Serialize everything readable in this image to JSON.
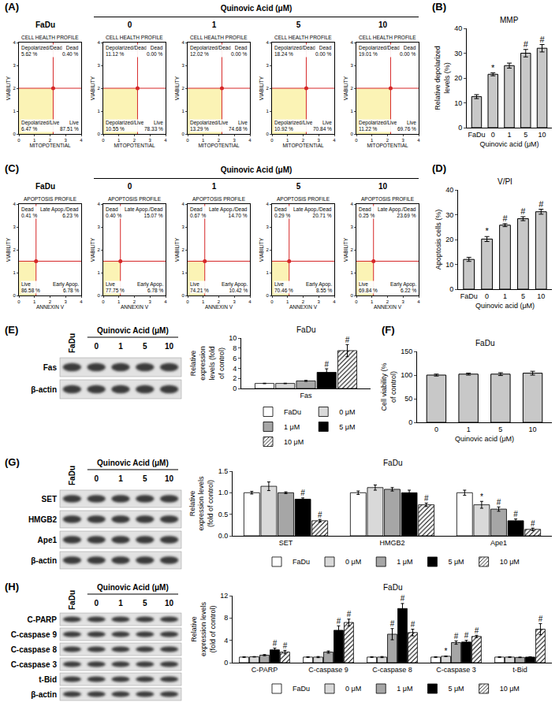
{
  "chart_data": [
    {
      "panel": "(A)",
      "type": "quadrant",
      "title": "CELL HEALTH PROFILE",
      "group_label": "Quinovic Acid (μM)",
      "x_label": "MITOPOTENTIAL",
      "y_label": "VIABILITY",
      "xlim": [
        0,
        4
      ],
      "ylim": [
        0,
        4
      ],
      "xticks": [
        0,
        1,
        2,
        3,
        4
      ],
      "yticks": [
        0,
        1,
        2,
        3,
        4
      ],
      "gate": {
        "x": 2.2,
        "y": 2.0
      },
      "quadrants": [
        "Depolarized/Dead",
        "Dead",
        "Depolarized/Live",
        "Live"
      ],
      "samples": [
        {
          "name": "FaDu",
          "values": [
            5.62,
            0.4,
            6.47,
            87.51
          ],
          "value_labels": [
            "5.62 %",
            "0.40 %",
            "6.47 %",
            "87.51 %"
          ]
        },
        {
          "name": "0",
          "values": [
            11.12,
            0.0,
            10.55,
            78.33
          ],
          "value_labels": [
            "11.12 %",
            "0.00 %",
            "10.55 %",
            "78.33 %"
          ]
        },
        {
          "name": "1",
          "values": [
            12.02,
            0.0,
            13.29,
            74.68
          ],
          "value_labels": [
            "12.02 %",
            "0.00 %",
            "13.29 %",
            "74.68 %"
          ]
        },
        {
          "name": "5",
          "values": [
            18.24,
            0.0,
            10.92,
            70.84
          ],
          "value_labels": [
            "18.24 %",
            "0.00 %",
            "10.92 %",
            "70.84 %"
          ]
        },
        {
          "name": "10",
          "values": [
            19.01,
            0.0,
            11.22,
            69.76
          ],
          "value_labels": [
            "19.01 %",
            "0.00 %",
            "11.22 %",
            "69.76 %"
          ]
        }
      ]
    },
    {
      "panel": "(B)",
      "type": "bar",
      "title": "MMP",
      "categories": [
        "FaDu",
        "0",
        "1",
        "5",
        "10"
      ],
      "values": [
        12.5,
        21.5,
        25,
        30,
        32
      ],
      "errors": [
        0.8,
        0.6,
        1.0,
        1.5,
        1.5
      ],
      "marks": [
        null,
        "*",
        null,
        "#",
        "#"
      ],
      "color": "#c8c8c8",
      "x_label": "Quinovic acid (μM)",
      "y_label": "Relative depolarized levels (%)",
      "ylim": [
        0,
        40
      ],
      "yticks": [
        0,
        10,
        20,
        30,
        40
      ],
      "grid": false
    },
    {
      "panel": "(C)",
      "type": "quadrant",
      "title": "APOPTOSIS PROFILE",
      "group_label": "Quinovic Acid (μM)",
      "x_label": "ANNEXIN V",
      "y_label": "VIABILITY",
      "xlim": [
        0,
        4
      ],
      "ylim": [
        0,
        4
      ],
      "xticks": [
        0,
        1,
        2,
        3,
        4
      ],
      "yticks": [
        0,
        1,
        2,
        3,
        4
      ],
      "gate": {
        "x": 1.1,
        "y": 1.5
      },
      "quadrants": [
        "Dead",
        "Late Apop./Dead",
        "Live",
        "Early Apop."
      ],
      "samples": [
        {
          "name": "FaDu",
          "values": [
            0.41,
            6.23,
            86.58,
            6.78
          ],
          "value_labels": [
            "0.41 %",
            "6.23 %",
            "86.58 %",
            "6.78 %"
          ]
        },
        {
          "name": "0",
          "values": [
            0.4,
            15.07,
            77.75,
            6.78
          ],
          "value_labels": [
            "0.40 %",
            "15.07 %",
            "77.75 %",
            "6.78 %"
          ]
        },
        {
          "name": "1",
          "values": [
            0.67,
            14.7,
            74.21,
            10.42
          ],
          "value_labels": [
            "0.67 %",
            "14.70 %",
            "74.21 %",
            "10.42 %"
          ]
        },
        {
          "name": "5",
          "values": [
            0.29,
            20.71,
            70.46,
            8.55
          ],
          "value_labels": [
            "0.29 %",
            "20.71 %",
            "70.46 %",
            "8.55 %"
          ]
        },
        {
          "name": "10",
          "values": [
            0.25,
            23.69,
            69.84,
            6.22
          ],
          "value_labels": [
            "0.25 %",
            "23.69 %",
            "69.84 %",
            "6.22 %"
          ]
        }
      ]
    },
    {
      "panel": "(D)",
      "type": "bar",
      "title": "V/PI",
      "categories": [
        "FaDu",
        "0",
        "1",
        "5",
        "10"
      ],
      "values": [
        12,
        20.2,
        25.8,
        28.4,
        31.2
      ],
      "errors": [
        0.8,
        1.0,
        0.6,
        0.8,
        1.0
      ],
      "marks": [
        null,
        "*",
        "#",
        "#",
        "#"
      ],
      "color": "#c8c8c8",
      "x_label": "Quinovic acid (μM)",
      "y_label": "Apoptosis cells (%)",
      "ylim": [
        0,
        40
      ],
      "yticks": [
        0,
        10,
        20,
        30,
        40
      ],
      "grid": false
    },
    {
      "type": "grouped_bar",
      "title": "FaDu",
      "categories": [
        "Fas"
      ],
      "y_label": "Relative expression levels (fold of control)",
      "ylim": [
        0,
        10
      ],
      "yticks": [
        0,
        2,
        4,
        6,
        8,
        10
      ],
      "grid": false,
      "legend": "bottom",
      "series": [
        {
          "name": "FaDu",
          "color": "#ffffff",
          "values": [
            1.0
          ],
          "errors": [
            0.05
          ],
          "marks": [
            null
          ]
        },
        {
          "name": "0 μM",
          "color": "#d9d9d9",
          "values": [
            1.0
          ],
          "errors": [
            0.05
          ],
          "marks": [
            null
          ]
        },
        {
          "name": "1 μM",
          "color": "#a6a6a6",
          "values": [
            1.5
          ],
          "errors": [
            0.1
          ],
          "marks": [
            null
          ]
        },
        {
          "name": "5 μM",
          "color": "#000000",
          "values": [
            3.2
          ],
          "errors": [
            0.7
          ],
          "marks": [
            "#"
          ]
        },
        {
          "name": "10 μM",
          "color": "#ffffff",
          "marker": "hatched",
          "values": [
            7.5
          ],
          "errors": [
            1.2
          ],
          "marks": [
            "#"
          ]
        }
      ]
    },
    {
      "panel": "(F)",
      "type": "bar",
      "title": "FaDu",
      "categories": [
        "0",
        "1",
        "5",
        "10"
      ],
      "values": [
        100,
        102,
        102,
        104
      ],
      "errors": [
        2,
        2,
        3,
        4
      ],
      "marks": [
        null,
        null,
        null,
        null
      ],
      "color": "#c8c8c8",
      "x_label": "Quinovic acid (μM)",
      "y_label": "Cell viability (% of control)",
      "ylim": [
        0,
        150
      ],
      "yticks": [
        0,
        50,
        100,
        150
      ],
      "grid": false
    },
    {
      "type": "grouped_bar",
      "title": "FaDu",
      "categories": [
        "SET",
        "HMGB2",
        "Ape1"
      ],
      "y_label": "Relative expression levels (fold of control)",
      "ylim": [
        0,
        1.5
      ],
      "yticks": [
        {
          "value": 0,
          "label": "0.0"
        },
        0.5,
        {
          "value": 1,
          "label": "1.0"
        },
        1.5
      ],
      "grid": false,
      "legend": "bottom",
      "series": [
        {
          "name": "FaDu",
          "color": "#ffffff",
          "values": [
            1.0,
            1.0,
            1.0
          ],
          "errors": [
            0.03,
            0.04,
            0.06
          ],
          "marks": [
            null,
            null,
            null
          ]
        },
        {
          "name": "0 μM",
          "color": "#d9d9d9",
          "values": [
            1.15,
            1.12,
            0.72
          ],
          "errors": [
            0.1,
            0.06,
            0.08
          ],
          "marks": [
            null,
            null,
            "*"
          ]
        },
        {
          "name": "1 μM",
          "color": "#a6a6a6",
          "values": [
            1.0,
            1.08,
            0.62
          ],
          "errors": [
            0.02,
            0.04,
            0.05
          ],
          "marks": [
            null,
            null,
            "#"
          ]
        },
        {
          "name": "5 μM",
          "color": "#000000",
          "values": [
            0.85,
            1.0,
            0.35
          ],
          "errors": [
            0.03,
            0.06,
            0.04
          ],
          "marks": [
            "#",
            null,
            "#"
          ]
        },
        {
          "name": "10 μM",
          "color": "#ffffff",
          "marker": "hatched",
          "values": [
            0.35,
            0.72,
            0.15
          ],
          "errors": [
            0.03,
            0.04,
            0.03
          ],
          "marks": [
            "#",
            "#",
            "#"
          ]
        }
      ]
    },
    {
      "type": "grouped_bar",
      "title": "FaDu",
      "categories": [
        "C-PARP",
        "C-caspase 9",
        "C-caspase 8",
        "C-caspase 3",
        "t-Bid"
      ],
      "y_label": "Relative expression levels (fold of control)",
      "ylim": [
        0,
        12
      ],
      "yticks": [
        0,
        4,
        8,
        12
      ],
      "grid": false,
      "legend": "bottom",
      "series": [
        {
          "name": "FaDu",
          "color": "#ffffff",
          "values": [
            1.0,
            1.0,
            1.0,
            1.0,
            1.0
          ],
          "errors": [
            0.05,
            0.05,
            0.05,
            0.05,
            0.05
          ],
          "marks": [
            null,
            null,
            null,
            null,
            null
          ]
        },
        {
          "name": "0 μM",
          "color": "#d9d9d9",
          "values": [
            1.05,
            1.0,
            1.0,
            1.15,
            1.0
          ],
          "errors": [
            0.05,
            0.1,
            0.1,
            0.05,
            0.05
          ],
          "marks": [
            null,
            null,
            null,
            "*",
            null
          ]
        },
        {
          "name": "1 μM",
          "color": "#a6a6a6",
          "values": [
            1.35,
            1.9,
            5.1,
            3.6,
            0.95
          ],
          "errors": [
            0.1,
            0.2,
            1.0,
            0.3,
            0.05
          ],
          "marks": [
            null,
            null,
            "#",
            "#",
            null
          ]
        },
        {
          "name": "5 μM",
          "color": "#000000",
          "values": [
            2.3,
            5.8,
            9.7,
            3.7,
            1.0
          ],
          "errors": [
            0.3,
            0.8,
            0.9,
            0.3,
            0.05
          ],
          "marks": [
            "#",
            "#",
            "#",
            "#",
            null
          ]
        },
        {
          "name": "10 μM",
          "color": "#ffffff",
          "marker": "hatched",
          "values": [
            1.9,
            7.2,
            5.4,
            4.7,
            6.0
          ],
          "errors": [
            0.3,
            0.6,
            0.6,
            0.2,
            1.0
          ],
          "marks": [
            "#",
            "#",
            "#",
            "#",
            "#"
          ]
        }
      ]
    }
  ],
  "blots": [
    {
      "panel": "(E)",
      "group_label": "Quinovic Acid (μM)",
      "lanes": [
        "FaDu",
        "0",
        "1",
        "5",
        "10"
      ],
      "rows": [
        "Fas",
        "β-actin"
      ]
    },
    {
      "panel": "(G)",
      "group_label": "Quinovic Acid (μM)",
      "lanes": [
        "FaDu",
        "0",
        "1",
        "5",
        "10"
      ],
      "rows": [
        "SET",
        "HMGB2",
        "Ape1",
        "β-actin"
      ]
    },
    {
      "panel": "(H)",
      "group_label": "Quinovic Acid (μM)",
      "lanes": [
        "FaDu",
        "0",
        "1",
        "5",
        "10"
      ],
      "rows": [
        "C-PARP",
        "C-caspase 9",
        "C-caspase 8",
        "C-caspase 3",
        "t-Bid",
        "β-actin"
      ]
    }
  ]
}
